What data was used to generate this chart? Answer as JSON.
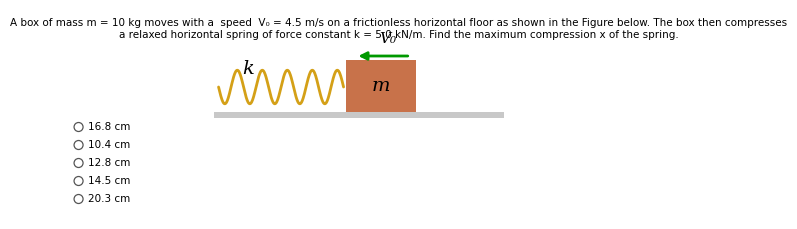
{
  "background_color": "#ffffff",
  "title_line1": "A box of mass m = 10 kg moves with a  speed  V₀ = 4.5 m/s on a frictionless horizontal floor as shown in the Figure below. The box then compresses",
  "title_line2": "a relaxed horizontal spring of force constant k = 5.0 kN/m. Find the maximum compression x of the spring.",
  "title_fontsize": 7.5,
  "floor_color": "#c8c8c8",
  "box_color": "#c8724a",
  "spring_color": "#d4a017",
  "arrow_color": "#009900",
  "label_k": "k",
  "label_m": "m",
  "label_v0": "V₀",
  "options": [
    "16.8 cm",
    "10.4 cm",
    "12.8 cm",
    "14.5 cm",
    "20.3 cm"
  ],
  "option_fontsize": 7.5
}
